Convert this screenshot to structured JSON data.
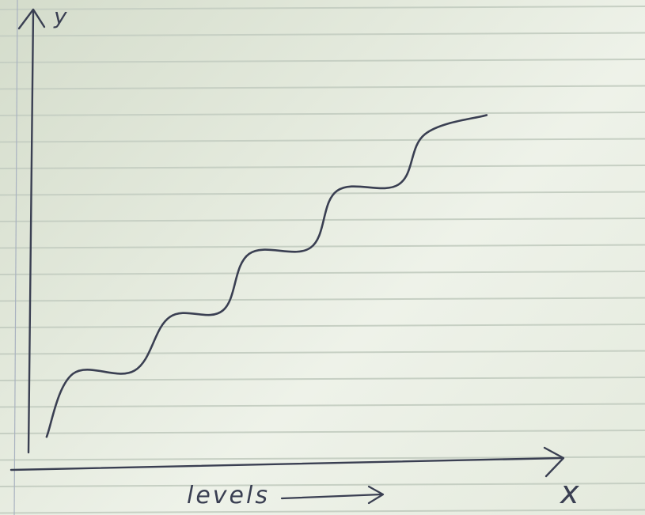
{
  "chart_data": {
    "type": "line",
    "title": "",
    "xlabel": "levels",
    "ylabel": "",
    "x_axis_letter": "x",
    "y_axis_letter": "y",
    "grid": false,
    "series": [
      {
        "values": [
          [
            0.0,
            0.0
          ],
          [
            0.3,
            1.0
          ],
          [
            1.0,
            1.05
          ],
          [
            1.4,
            1.9
          ],
          [
            2.0,
            2.0
          ],
          [
            2.3,
            2.9
          ],
          [
            3.0,
            3.0
          ],
          [
            3.3,
            3.9
          ],
          [
            4.0,
            4.0
          ],
          [
            4.3,
            4.8
          ],
          [
            5.0,
            5.1
          ]
        ]
      }
    ],
    "xlim": [
      -0.35,
      5.9
    ],
    "ylim": [
      -0.6,
      6.8
    ],
    "colors": {
      "ink": "#3a3f52",
      "paper_line": "#c6cfc3",
      "margin_line": "#a9b2c0"
    }
  }
}
